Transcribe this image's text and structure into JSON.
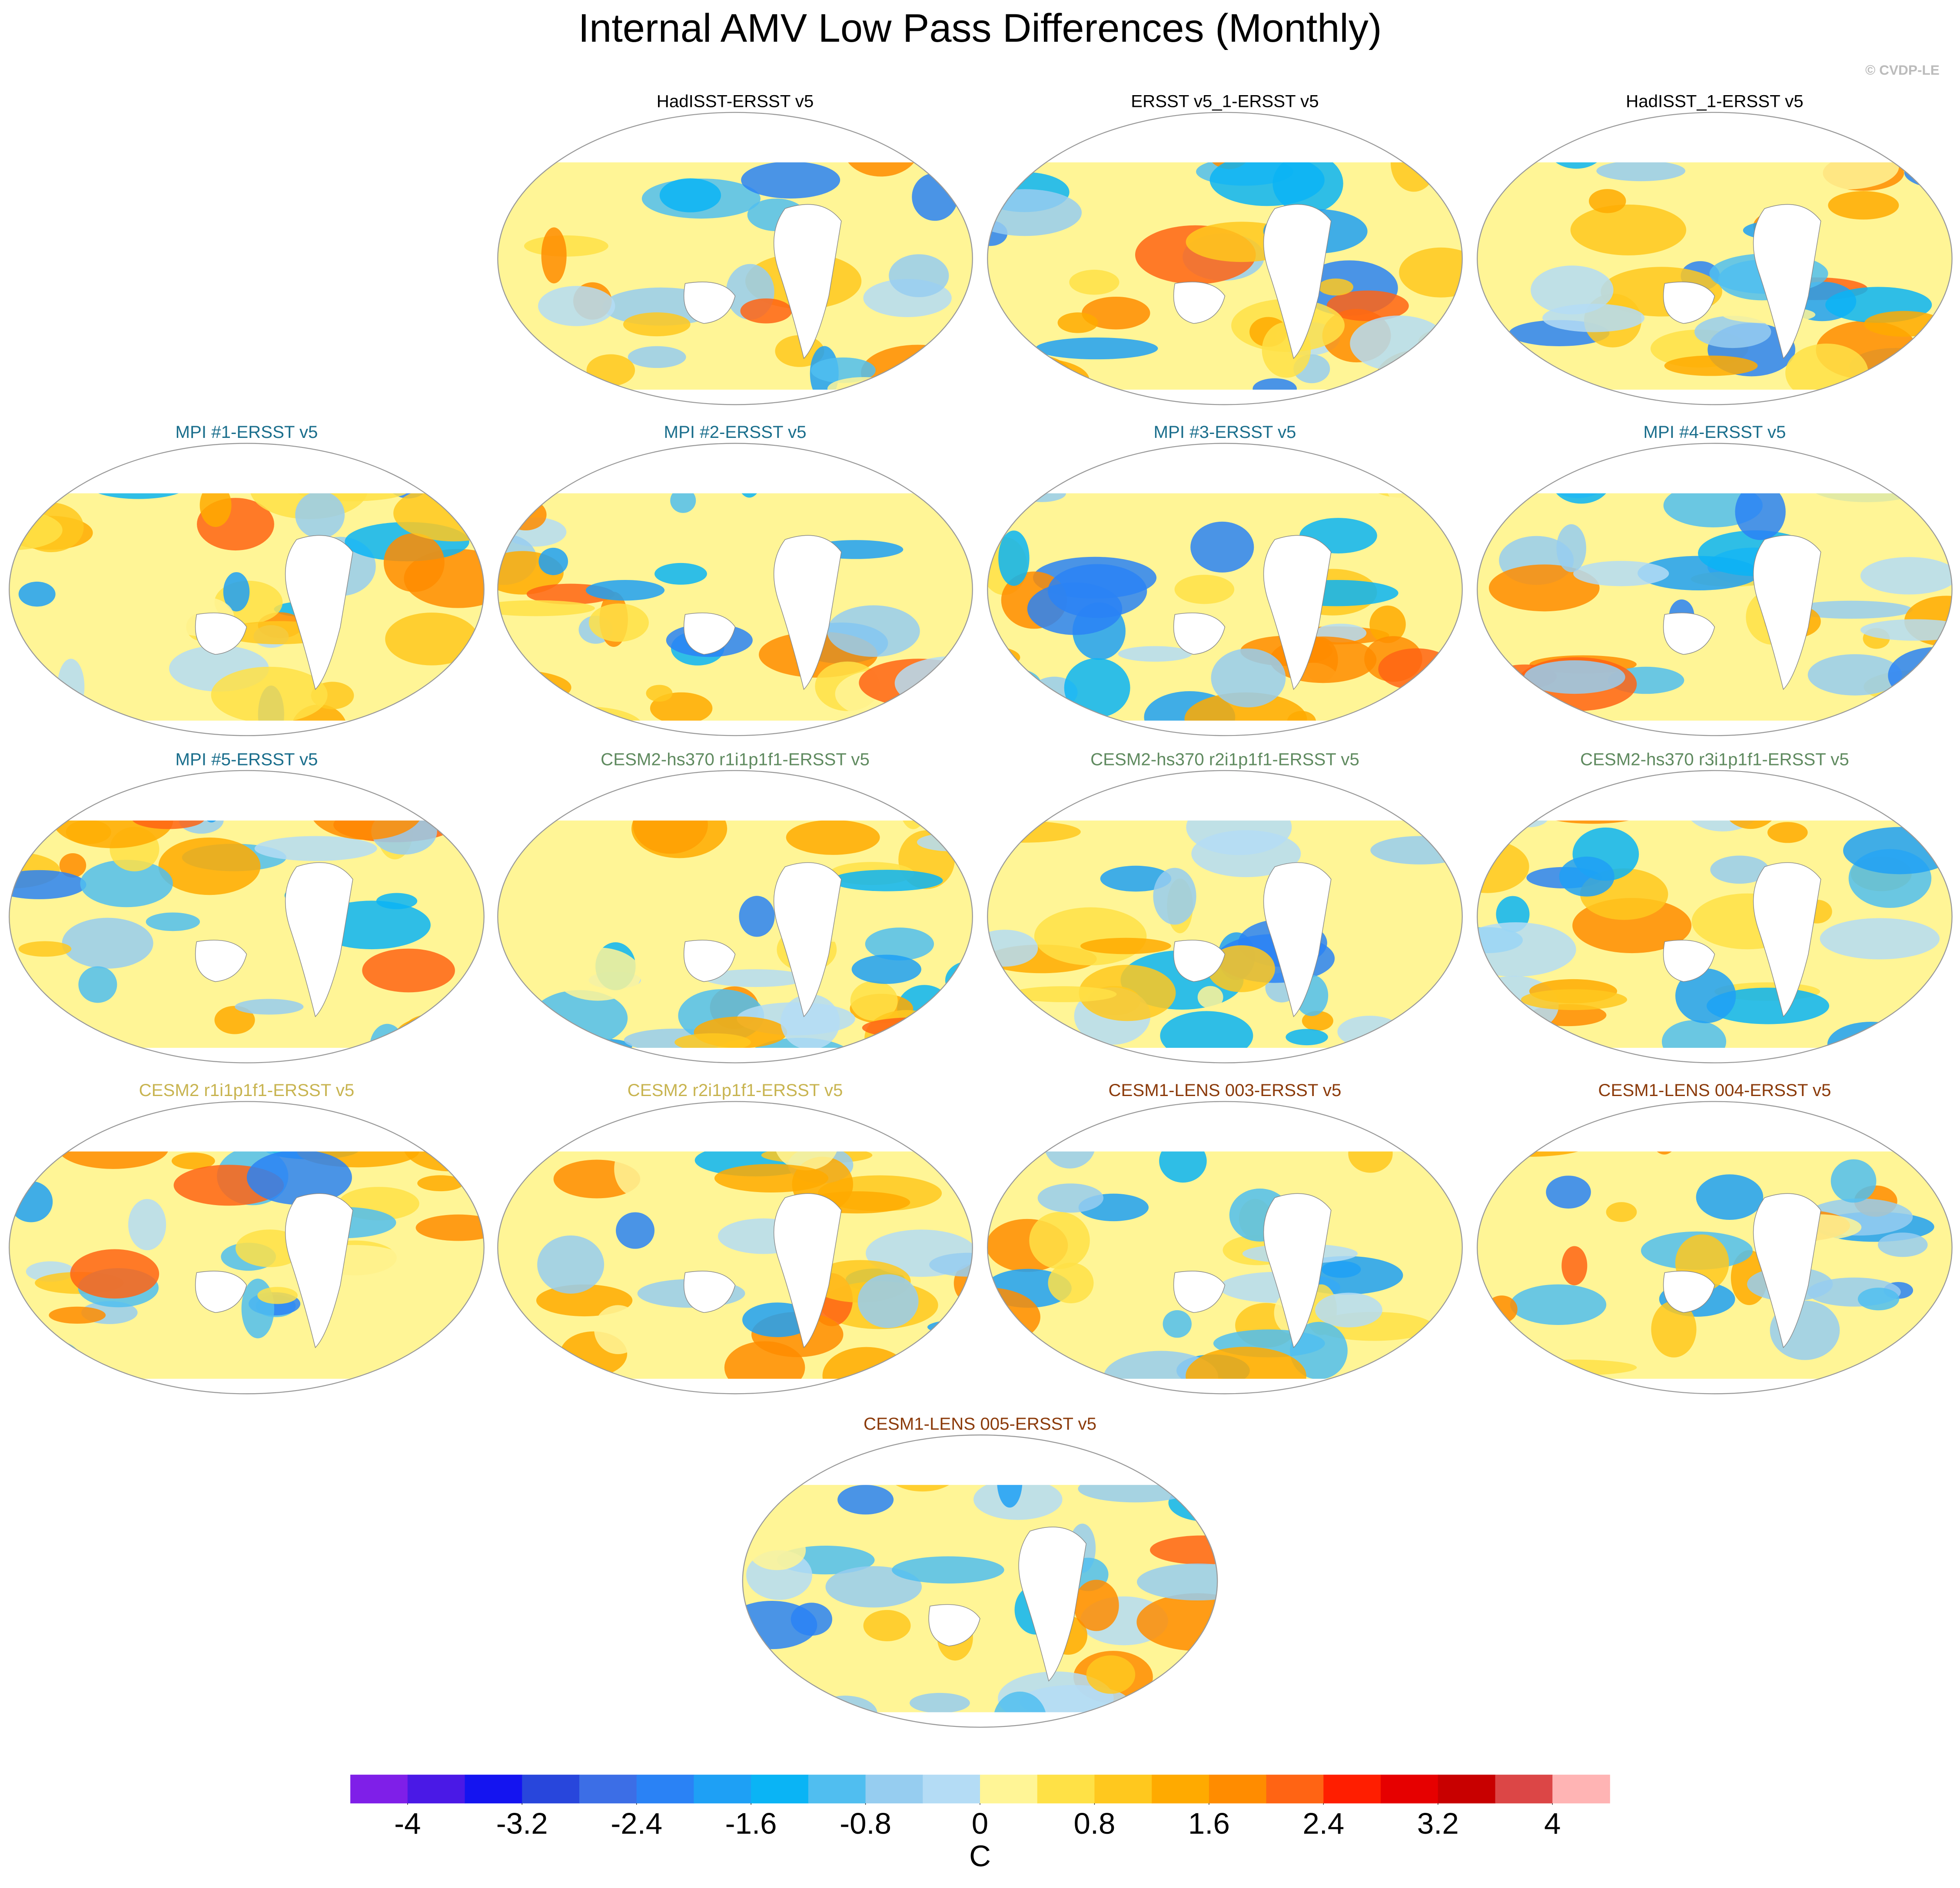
{
  "title": "Internal AMV Low Pass Differences (Monthly)",
  "watermark": "© CVDP-LE",
  "panels": [
    {
      "title": "HadISST-ERSST v5",
      "color": "#000000"
    },
    {
      "title": "ERSST v5_1-ERSST v5",
      "color": "#000000"
    },
    {
      "title": "HadISST_1-ERSST v5",
      "color": "#000000"
    },
    {
      "title": "MPI #1-ERSST v5",
      "color": "#1a6e8c"
    },
    {
      "title": "MPI #2-ERSST v5",
      "color": "#1a6e8c"
    },
    {
      "title": "MPI #3-ERSST v5",
      "color": "#1a6e8c"
    },
    {
      "title": "MPI #4-ERSST v5",
      "color": "#1a6e8c"
    },
    {
      "title": "MPI #5-ERSST v5",
      "color": "#1a6e8c"
    },
    {
      "title": "CESM2-hs370 r1i1p1f1-ERSST v5",
      "color": "#5f8a5f"
    },
    {
      "title": "CESM2-hs370 r2i1p1f1-ERSST v5",
      "color": "#5f8a5f"
    },
    {
      "title": "CESM2-hs370 r3i1p1f1-ERSST v5",
      "color": "#5f8a5f"
    },
    {
      "title": "CESM2 r1i1p1f1-ERSST v5",
      "color": "#c8b450"
    },
    {
      "title": "CESM2 r2i1p1f1-ERSST v5",
      "color": "#c8b450"
    },
    {
      "title": "CESM1-LENS 003-ERSST v5",
      "color": "#8b3a0a"
    },
    {
      "title": "CESM1-LENS 004-ERSST v5",
      "color": "#8b3a0a"
    },
    {
      "title": "CESM1-LENS 005-ERSST v5",
      "color": "#8b3a0a"
    }
  ],
  "colorbar": {
    "label": "C",
    "lim": [
      -4.4,
      4.4
    ],
    "ticks": [
      -4,
      -3.2,
      -2.4,
      -1.6,
      -0.8,
      0,
      0.8,
      1.6,
      2.4,
      3.2,
      4
    ],
    "colors": [
      "#7f1fe8",
      "#4a19e6",
      "#1414f0",
      "#2846dc",
      "#3c6ee6",
      "#2a82f5",
      "#1ea0f5",
      "#0ab4f5",
      "#50bef0",
      "#96cdf0",
      "#b4dcf5",
      "#fff596",
      "#ffe146",
      "#ffc81e",
      "#ffaa00",
      "#ff8c00",
      "#ff6414",
      "#ff1e00",
      "#e60000",
      "#c80000",
      "#dc4646",
      "#ffb4b4"
    ]
  }
}
